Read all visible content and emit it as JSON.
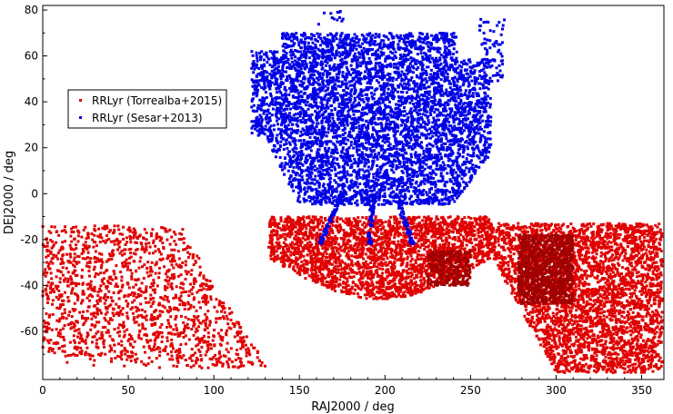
{
  "colors": {
    "background": "#ffffff",
    "frame": "#000000",
    "series_torrealba": "#e00000",
    "series_sesar": "#0000e6"
  },
  "chart_data": {
    "type": "scatter",
    "title": "",
    "xlabel": "RAJ2000 / deg",
    "ylabel": "DEJ2000 / deg",
    "xlim": [
      0,
      363
    ],
    "ylim": [
      -81,
      82
    ],
    "xticks": [
      0,
      50,
      100,
      150,
      200,
      250,
      300,
      350
    ],
    "yticks": [
      -60,
      -40,
      -20,
      0,
      20,
      40,
      60,
      80
    ],
    "grid": false,
    "legend_position": "upper-left",
    "series": [
      {
        "name": "RRLyr (Torrealba+2015)",
        "color": "#e00000",
        "marker": "square",
        "regions": [
          {
            "x_range": [
              0,
              130
            ],
            "y_range": [
              -76,
              -14
            ],
            "approx_count": 1500
          },
          {
            "x_range": [
              132,
              262
            ],
            "y_range": [
              -47,
              -10
            ],
            "approx_count": 2700
          },
          {
            "x_range": [
              255,
              362
            ],
            "y_range": [
              -78,
              -13
            ],
            "approx_count": 3400
          },
          {
            "x_range": [
              278,
              310
            ],
            "y_range": [
              -48,
              -18
            ],
            "approx_count": 1000
          },
          {
            "x_range": [
              225,
              250
            ],
            "y_range": [
              -40,
              -25
            ],
            "approx_count": 300
          }
        ]
      },
      {
        "name": "RRLyr (Sesar+2013)",
        "color": "#0000e6",
        "marker": "square",
        "regions": [
          {
            "x_range": [
              120,
              265
            ],
            "y_range": [
              -5,
              70
            ],
            "approx_count": 5200
          },
          {
            "x_range": [
              255,
              270
            ],
            "y_range": [
              47,
              76
            ],
            "approx_count": 70
          },
          {
            "x_range": [
              160,
              178
            ],
            "y_range": [
              73,
              80
            ],
            "approx_count": 12
          },
          {
            "x_range": [
              160,
              175
            ],
            "y_range": [
              -22,
              0
            ],
            "approx_count": 60
          },
          {
            "x_range": [
              187,
              195
            ],
            "y_range": [
              -22,
              0
            ],
            "approx_count": 60
          },
          {
            "x_range": [
              205,
              218
            ],
            "y_range": [
              -22,
              0
            ],
            "approx_count": 60
          }
        ]
      }
    ]
  }
}
